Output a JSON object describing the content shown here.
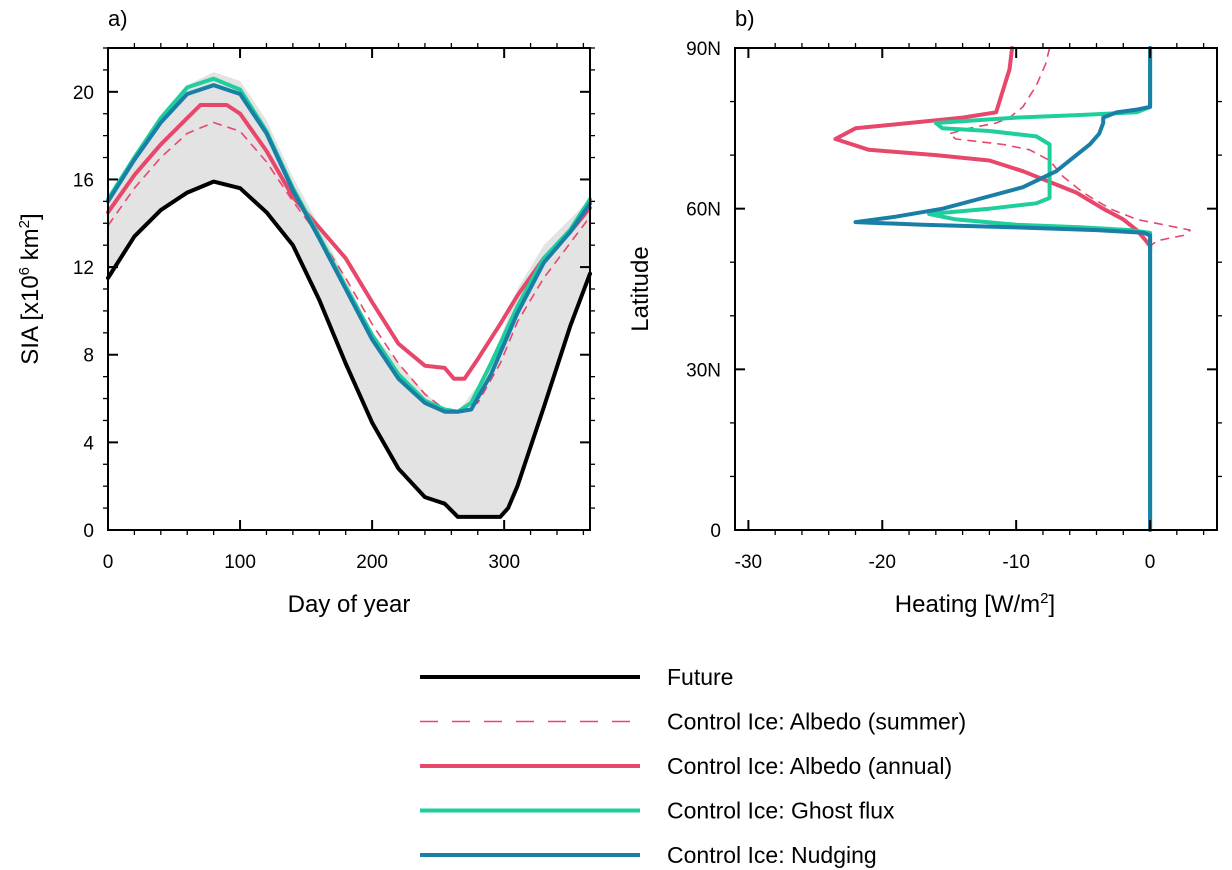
{
  "figure": {
    "legend": [
      {
        "key": "future",
        "label": "Future",
        "color": "#000000",
        "dashed": false
      },
      {
        "key": "albedo_summer",
        "label": "Control Ice: Albedo (summer)",
        "color": "#e8476c",
        "dashed": true
      },
      {
        "key": "albedo_annual",
        "label": "Control Ice: Albedo (annual)",
        "color": "#e8476c",
        "dashed": false
      },
      {
        "key": "ghost_flux",
        "label": "Control Ice: Ghost flux",
        "color": "#1ecf9c",
        "dashed": false
      },
      {
        "key": "nudging",
        "label": "Control Ice: Nudging",
        "color": "#1a7fa6",
        "dashed": false
      }
    ]
  },
  "chart_data": [
    {
      "type": "line",
      "panel_label": "a)",
      "xlabel": "Day of year",
      "ylabel_main": "SIA [x10",
      "ylabel_sup": "6",
      "ylabel_unit": " km",
      "ylabel_sup2": "2",
      "ylabel_end": "]",
      "xlim": [
        0,
        365
      ],
      "ylim": [
        0,
        22
      ],
      "xticks": [
        0,
        100,
        200,
        300
      ],
      "xtick_labels": [
        "0",
        "100",
        "200",
        "300"
      ],
      "yticks": [
        0,
        4,
        8,
        12,
        16,
        20
      ],
      "ytick_labels": [
        "0",
        "4",
        "8",
        "12",
        "16",
        "20"
      ],
      "shaded_range": {
        "color": "#e3e3e3",
        "x": [
          0,
          20,
          40,
          60,
          80,
          100,
          120,
          140,
          160,
          180,
          200,
          220,
          240,
          255,
          265,
          280,
          297,
          310,
          330,
          350,
          365
        ],
        "lower": [
          11.5,
          13.4,
          14.6,
          15.4,
          15.9,
          15.6,
          14.5,
          13.0,
          10.5,
          7.6,
          4.9,
          2.8,
          1.5,
          1.1,
          0.6,
          0.6,
          0.6,
          2.0,
          5.6,
          9.3,
          11.7
        ],
        "upper": [
          15.1,
          17.0,
          18.8,
          20.3,
          20.9,
          20.5,
          18.7,
          16.1,
          13.9,
          11.5,
          9.0,
          7.6,
          6.3,
          5.4,
          5.4,
          6.6,
          8.7,
          11.0,
          13.0,
          14.2,
          15.1
        ]
      },
      "series": [
        {
          "name": "Future",
          "key": "future",
          "x": [
            0,
            20,
            40,
            60,
            80,
            100,
            120,
            140,
            160,
            180,
            200,
            220,
            240,
            250,
            255,
            265,
            280,
            297,
            303,
            310,
            330,
            350,
            365
          ],
          "values": [
            11.5,
            13.4,
            14.6,
            15.4,
            15.9,
            15.6,
            14.5,
            13.0,
            10.5,
            7.6,
            4.9,
            2.8,
            1.5,
            1.3,
            1.2,
            0.6,
            0.6,
            0.6,
            1.0,
            2.0,
            5.6,
            9.3,
            11.7
          ]
        },
        {
          "name": "Control Ice: Albedo (summer)",
          "key": "albedo_summer",
          "x": [
            0,
            20,
            40,
            60,
            80,
            100,
            120,
            140,
            160,
            180,
            200,
            220,
            240,
            255,
            265,
            280,
            297,
            310,
            330,
            350,
            365
          ],
          "values": [
            13.9,
            15.6,
            17.0,
            18.1,
            18.6,
            18.2,
            16.8,
            15.0,
            13.4,
            11.5,
            9.4,
            7.6,
            6.2,
            5.5,
            5.4,
            5.8,
            7.6,
            9.5,
            11.5,
            13.1,
            14.3
          ]
        },
        {
          "name": "Control Ice: Albedo (annual)",
          "key": "albedo_annual",
          "x": [
            0,
            20,
            40,
            60,
            70,
            90,
            100,
            120,
            140,
            160,
            180,
            200,
            220,
            240,
            255,
            262,
            270,
            280,
            297,
            310,
            330,
            350,
            365
          ],
          "values": [
            14.5,
            16.2,
            17.6,
            18.8,
            19.4,
            19.4,
            19.0,
            17.3,
            15.2,
            13.8,
            12.4,
            10.4,
            8.5,
            7.5,
            7.4,
            6.9,
            6.9,
            7.8,
            9.4,
            10.7,
            12.4,
            13.6,
            14.7
          ]
        },
        {
          "name": "Control Ice: Ghost flux",
          "key": "ghost_flux",
          "x": [
            0,
            20,
            40,
            60,
            80,
            100,
            120,
            140,
            160,
            180,
            200,
            220,
            240,
            255,
            265,
            275,
            290,
            310,
            330,
            350,
            365
          ],
          "values": [
            15.1,
            17.0,
            18.8,
            20.2,
            20.6,
            20.1,
            18.2,
            15.6,
            13.4,
            11.1,
            8.9,
            7.1,
            5.9,
            5.5,
            5.4,
            5.8,
            7.6,
            10.2,
            12.4,
            13.7,
            15.1
          ]
        },
        {
          "name": "Control Ice: Nudging",
          "key": "nudging",
          "x": [
            0,
            20,
            40,
            60,
            80,
            100,
            120,
            140,
            160,
            180,
            200,
            220,
            240,
            255,
            265,
            275,
            290,
            310,
            330,
            350,
            365
          ],
          "values": [
            15.0,
            16.9,
            18.6,
            19.9,
            20.3,
            19.9,
            18.1,
            15.5,
            13.3,
            11.0,
            8.7,
            6.9,
            5.8,
            5.4,
            5.4,
            5.5,
            7.1,
            9.9,
            12.2,
            13.6,
            14.9
          ]
        }
      ]
    },
    {
      "type": "line",
      "panel_label": "b)",
      "xlabel_main": "Heating [W/m",
      "xlabel_sup": "2",
      "xlabel_end": "]",
      "ylabel": "Latitude",
      "xlim": [
        -31,
        5
      ],
      "ylim": [
        0,
        90
      ],
      "xticks": [
        -30,
        -20,
        -10,
        0
      ],
      "xtick_labels": [
        "-30",
        "-20",
        "-10",
        "0"
      ],
      "yticks": [
        0,
        30,
        60,
        90
      ],
      "ytick_labels": [
        "0",
        "30N",
        "60N",
        "90N"
      ],
      "series": [
        {
          "name": "Control Ice: Albedo (summer)",
          "key": "albedo_summer",
          "x": [
            -7.5,
            -7.8,
            -8.5,
            -9.5,
            -10.5,
            -11.5,
            -13.5,
            -15.0,
            -14.5,
            -11.0,
            -9.0,
            -7.5,
            -6.5,
            -5.0,
            -3.0,
            -1.0,
            1.0,
            3.0,
            2.5,
            0.5,
            0.0,
            0.0
          ],
          "y": [
            90,
            87,
            83,
            79,
            77,
            76,
            75,
            74,
            73,
            72,
            71,
            69,
            66,
            63,
            60,
            58,
            57,
            56,
            55,
            54,
            53,
            52
          ]
        },
        {
          "name": "Control Ice: Albedo (annual)",
          "key": "albedo_annual",
          "x": [
            -10.3,
            -10.5,
            -11.0,
            -11.5,
            -14.0,
            -18.0,
            -22.0,
            -23.5,
            -21.0,
            -16.0,
            -12.0,
            -9.5,
            -7.5,
            -5.5,
            -3.5,
            -2.0,
            -1.0,
            -0.3,
            0.0,
            0.0
          ],
          "y": [
            90,
            86,
            82,
            78,
            77,
            76,
            75,
            73,
            71,
            70,
            69,
            67,
            65,
            63,
            60,
            58,
            56,
            54,
            53,
            52
          ]
        },
        {
          "name": "Control Ice: Ghost flux",
          "key": "ghost_flux",
          "x": [
            0.0,
            0.0,
            -1.0,
            -5.0,
            -10.0,
            -16.0,
            -15.5,
            -12.0,
            -8.5,
            -7.5,
            -7.5,
            -7.5,
            -7.5,
            -7.5,
            -7.5,
            -8.5,
            -12.0,
            -16.5,
            -14.5,
            -10.0,
            -5.0,
            -1.5,
            0.0,
            0.0
          ],
          "y": [
            90,
            79,
            78,
            77.5,
            77,
            76,
            75,
            74.5,
            73.5,
            72,
            70,
            68,
            66,
            64,
            62,
            61,
            60,
            59,
            58,
            57,
            56.5,
            56,
            55.5,
            0
          ]
        },
        {
          "name": "Control Ice: Nudging",
          "key": "nudging",
          "x": [
            0.0,
            0.0,
            -1.0,
            -2.5,
            -3.5,
            -3.5,
            -3.8,
            -4.5,
            -5.5,
            -7.0,
            -9.5,
            -12.5,
            -15.5,
            -19.0,
            -22.0,
            -17.0,
            -10.0,
            -4.0,
            -0.5,
            0.0,
            0.0
          ],
          "y": [
            90,
            79,
            78.5,
            78,
            77,
            76,
            74,
            72,
            70,
            67,
            64,
            62,
            60,
            58.5,
            57.5,
            57,
            56.5,
            56,
            55.5,
            55,
            0
          ]
        }
      ]
    }
  ]
}
